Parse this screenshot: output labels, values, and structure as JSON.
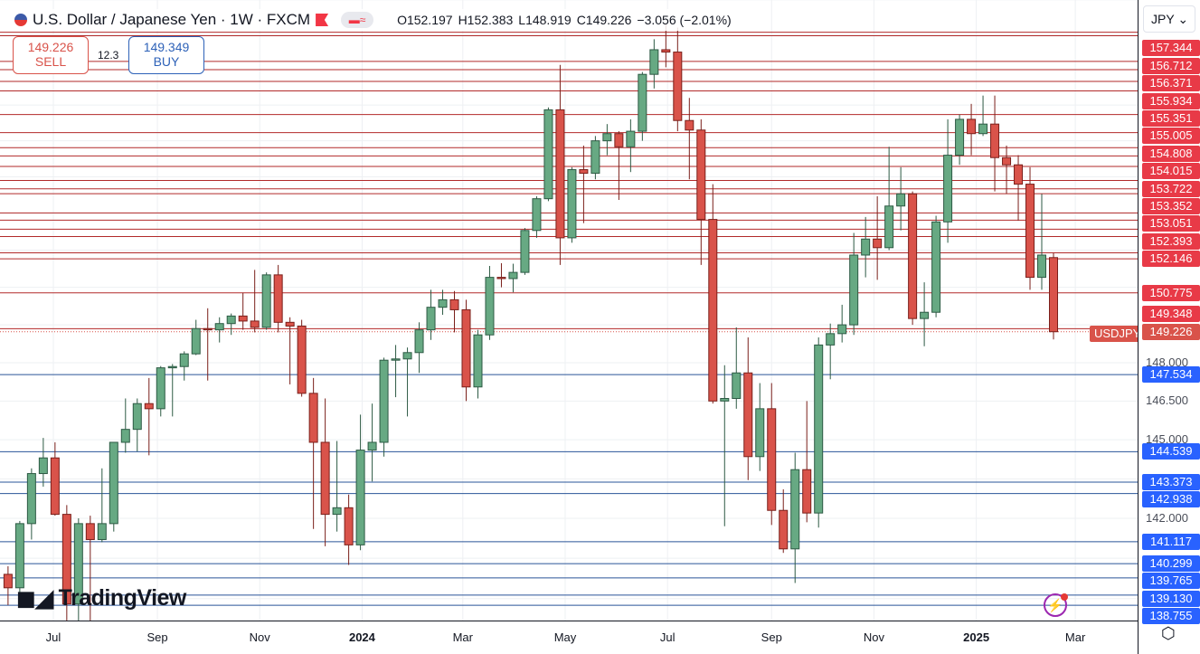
{
  "header": {
    "title": "U.S. Dollar / Japanese Yen · 1W · FXCM",
    "open": "O152.197",
    "high": "H152.383",
    "low": "L148.919",
    "close": "C149.226",
    "change": "−3.056 (−2.01%)"
  },
  "trade": {
    "sell_price": "149.226",
    "sell_label": "SELL",
    "spread": "12.3",
    "buy_price": "149.349",
    "buy_label": "BUY"
  },
  "currency_select": "JPY ⌄",
  "symbol_tag": "USDJPY",
  "brand": "TradingView",
  "colors": {
    "up": "#67a983",
    "down": "#d9534a",
    "resistance": "#b22a2a",
    "support": "#2a5599",
    "resistance_label": "#e83a47",
    "support_label": "#2962ff"
  },
  "icons": {
    "flag": "flag-icon",
    "bolt": "lightning-icon",
    "settings": "settings-icon"
  },
  "chart_data": {
    "type": "candlestick",
    "timeframe": "1W",
    "scale": "log",
    "grid": true,
    "time_ticks": [
      {
        "label": "Jul",
        "date": "2023-07-01"
      },
      {
        "label": "Sep",
        "date": "2023-09-01"
      },
      {
        "label": "Nov",
        "date": "2023-11-01"
      },
      {
        "label": "2024",
        "date": "2024-01-01",
        "bold": true
      },
      {
        "label": "Mar",
        "date": "2024-03-01"
      },
      {
        "label": "May",
        "date": "2024-05-01"
      },
      {
        "label": "Jul",
        "date": "2024-07-01"
      },
      {
        "label": "Sep",
        "date": "2024-09-01"
      },
      {
        "label": "Nov",
        "date": "2024-11-01"
      },
      {
        "label": "2025",
        "date": "2025-01-01",
        "bold": true
      },
      {
        "label": "Mar",
        "date": "2025-03-01"
      }
    ],
    "price_ticks": [
      "148.000",
      "146.500",
      "145.000",
      "142.000"
    ],
    "last_price": "149.226",
    "resistance_levels": [
      "157.344",
      "156.712",
      "156.371",
      "155.934",
      "155.351",
      "155.005",
      "154.808",
      "154.015",
      "153.722",
      "153.352",
      "153.051",
      "152.393",
      "152.146",
      "150.775",
      "149.348"
    ],
    "support_levels": [
      "147.534",
      "144.539",
      "143.373",
      "142.938",
      "141.117",
      "140.299",
      "139.765",
      "139.130",
      "138.755"
    ],
    "unlabeled_levels": [
      161.6,
      161.45,
      160.35,
      160.0,
      159.5,
      159.1,
      158.1
    ],
    "candles": [
      [
        "2023-06-04",
        139.9,
        140.2,
        138.76,
        139.4
      ],
      [
        "2023-06-11",
        139.4,
        141.9,
        138.9,
        141.8
      ],
      [
        "2023-06-18",
        141.8,
        143.9,
        141.2,
        143.7
      ],
      [
        "2023-06-25",
        143.7,
        145.07,
        143.2,
        144.3
      ],
      [
        "2023-07-02",
        144.3,
        144.9,
        142.1,
        142.15
      ],
      [
        "2023-07-09",
        142.15,
        142.5,
        137.24,
        138.8
      ],
      [
        "2023-07-16",
        138.8,
        142.0,
        137.7,
        141.8
      ],
      [
        "2023-07-23",
        141.8,
        142.1,
        138.05,
        141.2
      ],
      [
        "2023-07-30",
        141.2,
        143.9,
        141.1,
        141.8
      ],
      [
        "2023-08-06",
        141.8,
        144.9,
        141.5,
        144.9
      ],
      [
        "2023-08-13",
        144.9,
        146.6,
        144.5,
        145.4
      ],
      [
        "2023-08-20",
        145.4,
        146.6,
        144.55,
        146.4
      ],
      [
        "2023-08-27",
        146.4,
        147.4,
        144.4,
        146.2
      ],
      [
        "2023-09-03",
        146.2,
        147.87,
        145.9,
        147.8
      ],
      [
        "2023-09-10",
        147.8,
        147.95,
        145.9,
        147.85
      ],
      [
        "2023-09-17",
        147.85,
        148.45,
        147.3,
        148.35
      ],
      [
        "2023-09-24",
        148.35,
        149.7,
        148.3,
        149.35
      ],
      [
        "2023-10-01",
        149.35,
        150.16,
        147.3,
        149.3
      ],
      [
        "2023-10-08",
        149.3,
        149.8,
        148.8,
        149.55
      ],
      [
        "2023-10-15",
        149.55,
        149.95,
        149.1,
        149.85
      ],
      [
        "2023-10-22",
        149.85,
        150.78,
        149.3,
        149.65
      ],
      [
        "2023-10-29",
        149.65,
        151.7,
        149.2,
        149.4
      ],
      [
        "2023-11-05",
        149.4,
        151.6,
        149.3,
        151.5
      ],
      [
        "2023-11-12",
        151.5,
        151.9,
        149.2,
        149.6
      ],
      [
        "2023-11-19",
        149.6,
        149.8,
        147.15,
        149.45
      ],
      [
        "2023-11-26",
        149.45,
        149.7,
        146.67,
        146.8
      ],
      [
        "2023-12-03",
        146.8,
        147.4,
        141.6,
        144.9
      ],
      [
        "2023-12-10",
        144.9,
        146.6,
        140.95,
        142.15
      ],
      [
        "2023-12-17",
        142.15,
        144.95,
        141.5,
        142.4
      ],
      [
        "2023-12-24",
        142.4,
        142.9,
        140.25,
        141.0
      ],
      [
        "2023-12-31",
        141.0,
        145.97,
        140.8,
        144.6
      ],
      [
        "2024-01-07",
        144.6,
        146.4,
        143.4,
        144.9
      ],
      [
        "2024-01-14",
        144.9,
        148.2,
        144.35,
        148.1
      ],
      [
        "2024-01-21",
        148.1,
        148.7,
        146.65,
        148.15
      ],
      [
        "2024-01-28",
        148.15,
        148.6,
        145.9,
        148.4
      ],
      [
        "2024-02-04",
        148.4,
        149.6,
        147.6,
        149.3
      ],
      [
        "2024-02-11",
        149.3,
        150.9,
        148.9,
        150.2
      ],
      [
        "2024-02-18",
        150.2,
        150.9,
        149.9,
        150.5
      ],
      [
        "2024-02-25",
        150.5,
        150.85,
        149.2,
        150.1
      ],
      [
        "2024-03-03",
        150.1,
        150.5,
        146.5,
        147.05
      ],
      [
        "2024-03-10",
        147.05,
        149.3,
        146.6,
        149.1
      ],
      [
        "2024-03-17",
        149.1,
        151.86,
        148.9,
        151.4
      ],
      [
        "2024-03-24",
        151.4,
        151.97,
        151.0,
        151.35
      ],
      [
        "2024-03-31",
        151.35,
        151.95,
        150.8,
        151.6
      ],
      [
        "2024-04-07",
        151.6,
        153.4,
        151.5,
        153.3
      ],
      [
        "2024-04-14",
        153.3,
        154.7,
        153.0,
        154.6
      ],
      [
        "2024-04-21",
        154.6,
        158.4,
        154.5,
        158.3
      ],
      [
        "2024-04-28",
        158.3,
        160.2,
        151.9,
        153.0
      ],
      [
        "2024-05-05",
        153.0,
        155.9,
        152.8,
        155.8
      ],
      [
        "2024-05-12",
        155.8,
        156.8,
        153.6,
        155.65
      ],
      [
        "2024-05-19",
        155.65,
        157.2,
        155.4,
        157.0
      ],
      [
        "2024-05-26",
        157.0,
        157.7,
        156.4,
        157.3
      ],
      [
        "2024-06-02",
        157.3,
        157.4,
        154.55,
        156.75
      ],
      [
        "2024-06-09",
        156.75,
        157.9,
        155.7,
        157.4
      ],
      [
        "2024-06-16",
        157.4,
        159.9,
        157.0,
        159.8
      ],
      [
        "2024-06-23",
        159.8,
        161.3,
        159.2,
        160.85
      ],
      [
        "2024-06-30",
        160.85,
        161.95,
        160.1,
        160.75
      ],
      [
        "2024-07-07",
        160.75,
        161.8,
        157.4,
        157.85
      ],
      [
        "2024-07-14",
        157.85,
        158.8,
        155.4,
        157.45
      ],
      [
        "2024-07-21",
        157.45,
        157.9,
        151.9,
        153.75
      ],
      [
        "2024-07-28",
        153.75,
        155.2,
        146.4,
        146.5
      ],
      [
        "2024-08-04",
        146.5,
        147.9,
        141.7,
        146.6
      ],
      [
        "2024-08-11",
        146.6,
        149.4,
        146.2,
        147.6
      ],
      [
        "2024-08-18",
        147.6,
        149.0,
        143.45,
        144.35
      ],
      [
        "2024-08-25",
        144.35,
        147.2,
        143.8,
        146.2
      ],
      [
        "2024-09-01",
        146.2,
        147.2,
        141.75,
        142.3
      ],
      [
        "2024-09-08",
        142.3,
        143.1,
        140.7,
        140.85
      ],
      [
        "2024-09-15",
        140.85,
        144.5,
        139.58,
        143.85
      ],
      [
        "2024-09-22",
        143.85,
        146.5,
        141.85,
        142.2
      ],
      [
        "2024-09-29",
        142.2,
        149.0,
        141.65,
        148.7
      ],
      [
        "2024-10-06",
        148.7,
        149.55,
        147.35,
        149.15
      ],
      [
        "2024-10-13",
        149.15,
        150.3,
        148.8,
        149.5
      ],
      [
        "2024-10-20",
        149.5,
        153.2,
        149.1,
        152.3
      ],
      [
        "2024-10-27",
        152.3,
        153.85,
        151.4,
        152.95
      ],
      [
        "2024-11-03",
        152.95,
        154.7,
        151.3,
        152.6
      ],
      [
        "2024-11-10",
        152.6,
        156.75,
        152.5,
        154.3
      ],
      [
        "2024-11-17",
        154.3,
        155.9,
        153.3,
        154.8
      ],
      [
        "2024-11-24",
        154.8,
        154.9,
        149.5,
        149.75
      ],
      [
        "2024-12-01",
        149.75,
        151.2,
        148.65,
        150.0
      ],
      [
        "2024-12-08",
        150.0,
        153.9,
        149.8,
        153.65
      ],
      [
        "2024-12-15",
        153.65,
        157.9,
        152.8,
        156.4
      ],
      [
        "2024-12-22",
        156.4,
        158.1,
        156.0,
        157.9
      ],
      [
        "2024-12-29",
        157.9,
        158.55,
        156.4,
        157.3
      ],
      [
        "2025-01-05",
        157.3,
        158.9,
        157.2,
        157.7
      ],
      [
        "2025-01-12",
        157.7,
        158.9,
        154.9,
        156.3
      ],
      [
        "2025-01-19",
        156.3,
        156.8,
        154.8,
        156.0
      ],
      [
        "2025-01-26",
        156.0,
        156.4,
        153.7,
        155.2
      ],
      [
        "2025-02-02",
        155.2,
        155.9,
        150.9,
        151.4
      ],
      [
        "2025-02-09",
        151.4,
        154.8,
        150.9,
        152.3
      ],
      [
        "2025-02-16",
        152.197,
        152.383,
        148.919,
        149.226
      ]
    ]
  }
}
